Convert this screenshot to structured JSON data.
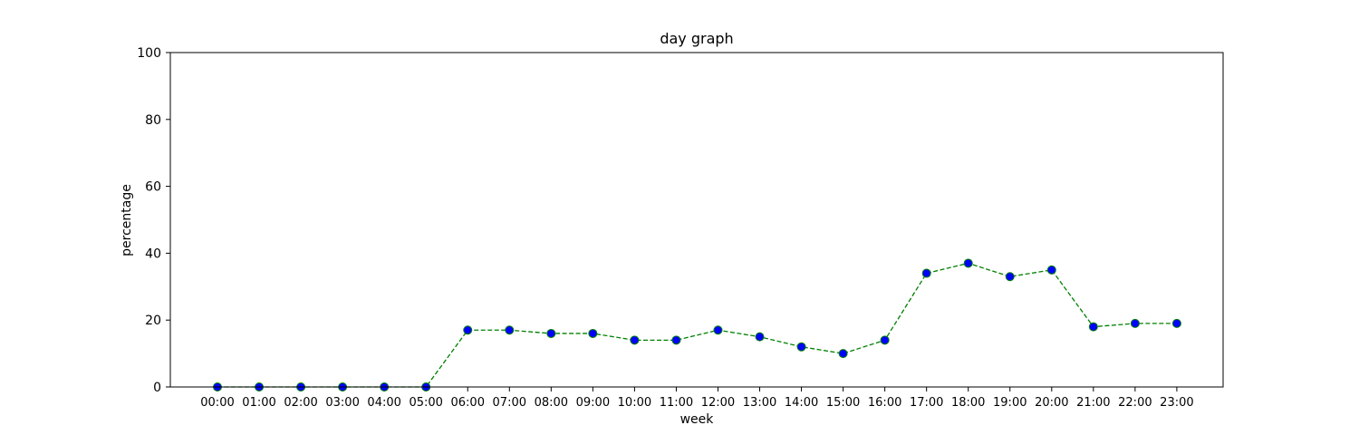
{
  "chart_data": {
    "type": "line",
    "title": "day graph",
    "xlabel": "week",
    "ylabel": "percentage",
    "ylim": [
      0,
      100
    ],
    "yticks": [
      0,
      20,
      40,
      60,
      80,
      100
    ],
    "grid": false,
    "categories": [
      "00:00",
      "01:00",
      "02:00",
      "03:00",
      "04:00",
      "05:00",
      "06:00",
      "07:00",
      "08:00",
      "09:00",
      "10:00",
      "11:00",
      "12:00",
      "13:00",
      "14:00",
      "15:00",
      "16:00",
      "17:00",
      "18:00",
      "19:00",
      "20:00",
      "21:00",
      "22:00",
      "23:00"
    ],
    "series": [
      {
        "values": [
          0,
          0,
          0,
          0,
          0,
          0,
          17,
          17,
          16,
          16,
          14,
          14,
          17,
          15,
          12,
          10,
          14,
          34,
          37,
          33,
          35,
          18,
          19,
          19
        ],
        "line_color": "#008000",
        "line_style": "dashed",
        "marker_face": "#0000ff",
        "marker_edge": "#008000"
      }
    ]
  }
}
